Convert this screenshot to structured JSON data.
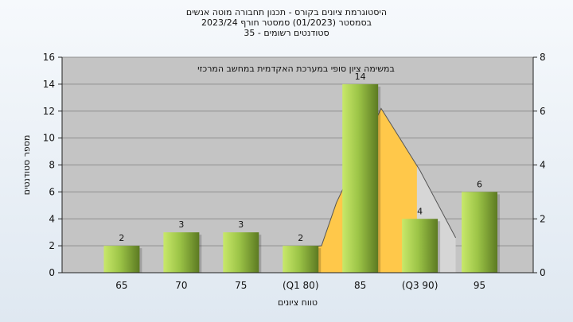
{
  "header": {
    "title_line1": "היסטוגרמת ציונים בקורס - תכנון תחבורה מוטה אנשים",
    "title_line2": "בסמסטר  (01/2023)  סמסטר חורף  2023/24",
    "title_line3": "סטודנטים רשומים - 35"
  },
  "chart_data": {
    "type": "bar",
    "categories": [
      "65",
      "70",
      "75",
      "(Q1 80)",
      "85",
      "(Q3 90)",
      "95"
    ],
    "values": [
      2,
      3,
      3,
      2,
      14,
      4,
      6
    ],
    "data_labels": [
      "2",
      "3",
      "3",
      "2",
      "14",
      "4",
      "6"
    ],
    "xlabel": "טווח ציונים",
    "ylabel": "מספר סטודנטים",
    "ylim": [
      0,
      16
    ],
    "y_ticks": [
      "0",
      "2",
      "4",
      "6",
      "8",
      "10",
      "12",
      "14",
      "16"
    ],
    "y2lim": [
      0,
      8
    ],
    "y2_ticks": [
      "0",
      "2",
      "4",
      "6",
      "8"
    ],
    "annotation": "במשימה ציון סופי במערכת האקדמית במחשב המרכזי",
    "overlay": {
      "quartile_band": {
        "from_category": "(Q1 80)",
        "to_category": "(Q3 90)",
        "color": "#ffc84a"
      },
      "distribution_curve": [
        {
          "x": 3.0,
          "y2": 0.9
        },
        {
          "x": 3.35,
          "y2": 1.0
        },
        {
          "x": 3.6,
          "y2": 2.6
        },
        {
          "x": 4.35,
          "y2": 6.1
        },
        {
          "x": 5.0,
          "y2": 3.8
        },
        {
          "x": 5.6,
          "y2": 1.3
        }
      ]
    },
    "grid": true,
    "colors": {
      "plot_bg": "#c4c4c4",
      "bar_light": "#c8e86a",
      "bar_mid": "#9cc447",
      "bar_dark": "#5c7a22",
      "quartile_band": "#ffc84a",
      "curve_fill": "#d6d6d6",
      "curve_line": "#555555"
    }
  }
}
